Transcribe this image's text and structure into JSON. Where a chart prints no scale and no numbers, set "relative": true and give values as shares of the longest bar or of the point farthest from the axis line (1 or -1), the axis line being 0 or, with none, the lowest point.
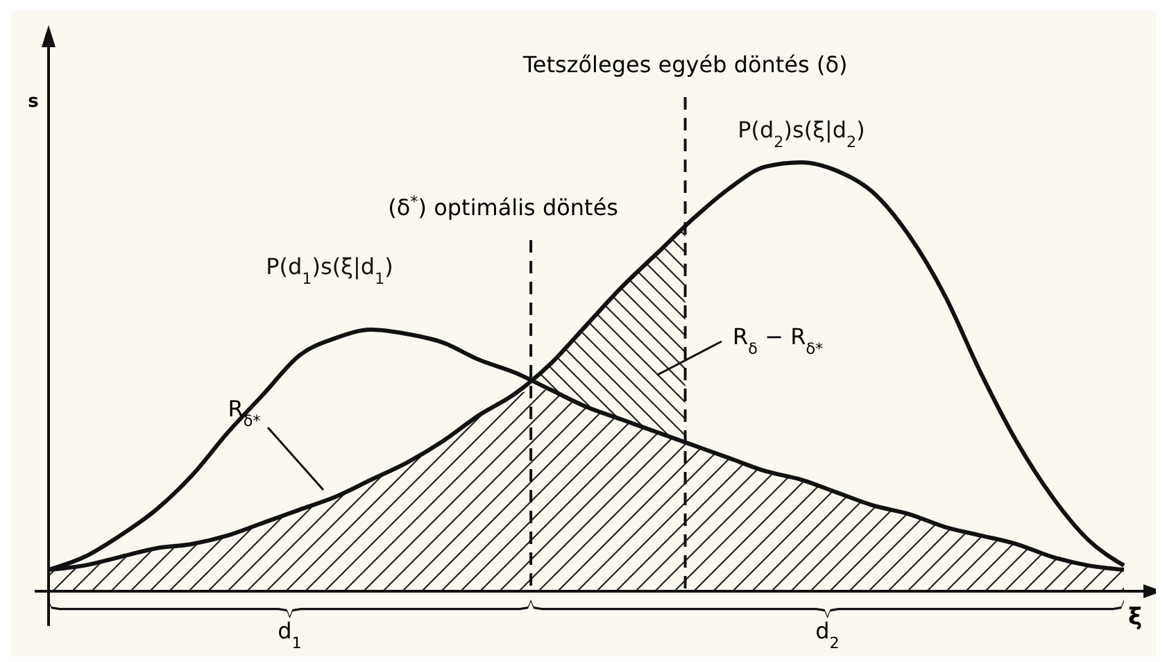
{
  "chart_data": {
    "type": "line",
    "relative": true,
    "xlabel": "ξ",
    "ylabel": "s",
    "marker": "none",
    "line_style": "solid",
    "categories": [
      null,
      null,
      null,
      null,
      null,
      null,
      null,
      null,
      null,
      null,
      null,
      null,
      null,
      null,
      null,
      null,
      null,
      null,
      null,
      null,
      null,
      null,
      null,
      null,
      null,
      null,
      null,
      null,
      null,
      null,
      null
    ],
    "series": [
      {
        "name": "P(d$_{1}$)s(ξ|d$_{1}$)",
        "color": "#111111",
        "values": [
          0.05,
          0.08,
          0.13,
          0.19,
          0.27,
          0.37,
          0.46,
          0.55,
          0.59,
          0.61,
          0.6,
          0.58,
          0.54,
          0.51,
          0.47,
          0.43,
          0.4,
          0.37,
          0.34,
          0.31,
          0.28,
          0.26,
          0.23,
          0.2,
          0.18,
          0.15,
          0.13,
          0.11,
          0.08,
          0.06,
          0.05
        ]
      },
      {
        "name": "P(d$_{2}$)s(ξ|d$_{2}$)",
        "color": "#111111",
        "values": [
          0.05,
          0.06,
          0.08,
          0.1,
          0.11,
          0.13,
          0.16,
          0.19,
          0.22,
          0.26,
          0.3,
          0.35,
          0.41,
          0.46,
          0.53,
          0.62,
          0.71,
          0.79,
          0.87,
          0.94,
          0.99,
          1.0,
          0.98,
          0.93,
          0.83,
          0.69,
          0.51,
          0.35,
          0.22,
          0.12,
          0.06
        ]
      }
    ],
    "annotations": [
      "(δ$^{*}$) optimális döntés",
      "Tetszőleges egyéb döntés (δ)",
      "R$_{δ*}$",
      "R$_{δ}$ − R$_{δ*}$",
      "d$_{1}$",
      "d$_{2}$"
    ]
  }
}
